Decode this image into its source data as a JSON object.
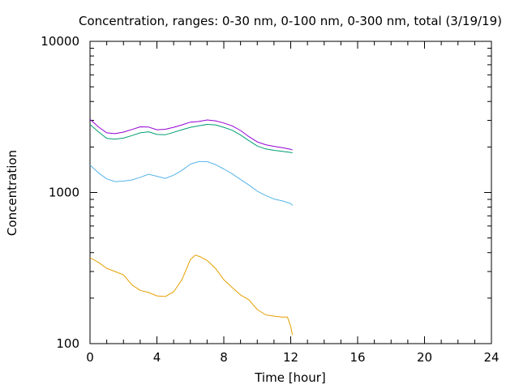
{
  "chart_data": {
    "type": "line",
    "title": "Concentration, ranges: 0-30 nm, 0-100 nm, 0-300 nm, total (3/19/19)",
    "xlabel": "Time [hour]",
    "ylabel": "Concentration",
    "xlim": [
      0,
      24
    ],
    "ylim": [
      100,
      10000
    ],
    "y_scale": "log",
    "grid": false,
    "legend": "none",
    "x_ticks": [
      {
        "value": 0,
        "label": "0"
      },
      {
        "value": 4,
        "label": "4"
      },
      {
        "value": 8,
        "label": "8"
      },
      {
        "value": 12,
        "label": "12"
      },
      {
        "value": 16,
        "label": "16"
      },
      {
        "value": 20,
        "label": "20"
      },
      {
        "value": 24,
        "label": "24"
      }
    ],
    "y_ticks": [
      {
        "value": 100,
        "label": "100"
      },
      {
        "value": 1000,
        "label": "1000"
      },
      {
        "value": 10000,
        "label": "10000"
      }
    ],
    "series": [
      {
        "color": "#e69f00",
        "x": [
          0,
          0.5,
          1,
          1.5,
          2,
          2.5,
          3,
          3.5,
          4,
          4.5,
          5,
          5.5,
          6,
          6.3,
          6.6,
          7,
          7.5,
          8,
          8.5,
          9,
          9.5,
          10,
          10.5,
          11,
          11.5,
          11.8,
          12,
          12.1
        ],
        "y": [
          370,
          345,
          315,
          300,
          285,
          245,
          225,
          218,
          207,
          205,
          220,
          265,
          360,
          385,
          375,
          355,
          315,
          265,
          235,
          210,
          195,
          168,
          155,
          152,
          150,
          150,
          130,
          114
        ]
      },
      {
        "color": "#56b4e9",
        "x": [
          0,
          0.5,
          1,
          1.5,
          2,
          2.5,
          3,
          3.5,
          4,
          4.5,
          5,
          5.5,
          6,
          6.5,
          7,
          7.5,
          8,
          8.5,
          9,
          9.5,
          10,
          10.5,
          11,
          11.5,
          12,
          12.1
        ],
        "y": [
          1520,
          1350,
          1230,
          1180,
          1190,
          1210,
          1260,
          1320,
          1280,
          1240,
          1300,
          1400,
          1540,
          1600,
          1600,
          1530,
          1430,
          1330,
          1220,
          1120,
          1020,
          955,
          905,
          880,
          845,
          820
        ]
      },
      {
        "color": "#009e73",
        "x": [
          0,
          0.5,
          1,
          1.5,
          2,
          2.5,
          3,
          3.5,
          4,
          4.5,
          5,
          5.5,
          6,
          6.5,
          7,
          7.5,
          8,
          8.5,
          9,
          9.5,
          10,
          10.5,
          11,
          11.5,
          12,
          12.1
        ],
        "y": [
          2820,
          2520,
          2280,
          2250,
          2290,
          2380,
          2480,
          2520,
          2420,
          2410,
          2500,
          2600,
          2700,
          2760,
          2820,
          2800,
          2700,
          2580,
          2400,
          2200,
          2030,
          1940,
          1900,
          1870,
          1840,
          1830
        ]
      },
      {
        "color": "#9400d3",
        "x": [
          0,
          0.5,
          1,
          1.5,
          2,
          2.5,
          3,
          3.5,
          4,
          4.5,
          5,
          5.5,
          6,
          6.5,
          7,
          7.5,
          8,
          8.5,
          9,
          9.5,
          10,
          10.5,
          11,
          11.5,
          12,
          12.1
        ],
        "y": [
          3050,
          2720,
          2480,
          2450,
          2510,
          2610,
          2720,
          2710,
          2600,
          2620,
          2700,
          2800,
          2920,
          2950,
          3020,
          2980,
          2880,
          2760,
          2570,
          2340,
          2160,
          2070,
          2020,
          1980,
          1930,
          1910
        ]
      }
    ]
  }
}
